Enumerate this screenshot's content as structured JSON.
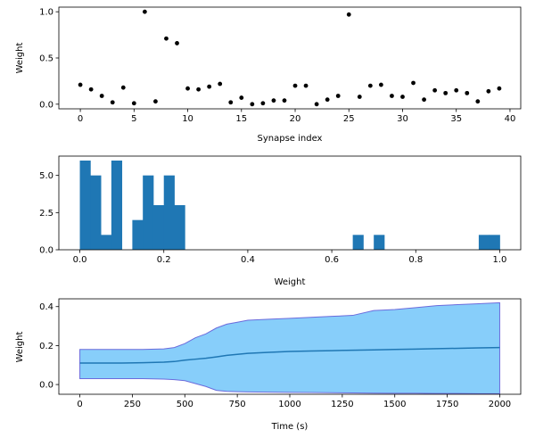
{
  "chart_data": [
    {
      "type": "scatter",
      "xlabel": "Synapse index",
      "ylabel": "Weight",
      "xlim": [
        -2,
        41
      ],
      "ylim": [
        -0.05,
        1.05
      ],
      "xticks": [
        0,
        5,
        10,
        15,
        20,
        25,
        30,
        35,
        40
      ],
      "yticks": [
        0.0,
        0.5,
        1.0
      ],
      "ytick_labels": [
        "0.0",
        "0.5",
        "1.0"
      ],
      "grid": false,
      "marker_color": "#000000",
      "x": [
        0,
        1,
        2,
        3,
        4,
        5,
        6,
        7,
        8,
        9,
        10,
        11,
        12,
        13,
        14,
        15,
        16,
        17,
        18,
        19,
        20,
        21,
        22,
        23,
        24,
        25,
        26,
        27,
        28,
        29,
        30,
        31,
        32,
        33,
        34,
        35,
        36,
        37,
        38,
        39
      ],
      "y": [
        0.21,
        0.16,
        0.09,
        0.02,
        0.18,
        0.01,
        1.0,
        0.03,
        0.71,
        0.66,
        0.17,
        0.16,
        0.19,
        0.22,
        0.02,
        0.07,
        0.0,
        0.01,
        0.04,
        0.04,
        0.2,
        0.2,
        0.0,
        0.05,
        0.09,
        0.97,
        0.08,
        0.2,
        0.21,
        0.09,
        0.08,
        0.23,
        0.05,
        0.15,
        0.12,
        0.15,
        0.12,
        0.03,
        0.14,
        0.17
      ]
    },
    {
      "type": "bar",
      "subtype": "histogram",
      "xlabel": "Weight",
      "ylabel": "",
      "xlim": [
        -0.05,
        1.05
      ],
      "ylim": [
        0,
        6.3
      ],
      "xticks": [
        0.0,
        0.2,
        0.4,
        0.6,
        0.8,
        1.0
      ],
      "xtick_labels": [
        "0.0",
        "0.2",
        "0.4",
        "0.6",
        "0.8",
        "1.0"
      ],
      "yticks": [
        0.0,
        2.5,
        5.0
      ],
      "ytick_labels": [
        "0.0",
        "2.5",
        "5.0"
      ],
      "grid": false,
      "bar_color": "#1f77b4",
      "bin_start": 0.0,
      "bin_width": 0.025,
      "counts": [
        6,
        5,
        1,
        6,
        0,
        2,
        5,
        3,
        5,
        3,
        0,
        0,
        0,
        0,
        0,
        0,
        0,
        0,
        0,
        0,
        0,
        0,
        0,
        0,
        0,
        0,
        1,
        0,
        1,
        0,
        0,
        0,
        0,
        0,
        0,
        0,
        0,
        0,
        1,
        1
      ]
    },
    {
      "type": "area",
      "xlabel": "Time (s)",
      "ylabel": "Weight",
      "xlim": [
        -100,
        2100
      ],
      "ylim": [
        -0.05,
        0.44
      ],
      "xticks": [
        0,
        250,
        500,
        750,
        1000,
        1250,
        1500,
        1750,
        2000
      ],
      "yticks": [
        0.0,
        0.2,
        0.4
      ],
      "ytick_labels": [
        "0.0",
        "0.2",
        "0.4"
      ],
      "grid": false,
      "fill_color": "#87cefa",
      "edge_color": "#6b6bdc",
      "mean_color": "#1f77b4",
      "time": [
        0,
        100,
        200,
        300,
        400,
        450,
        500,
        550,
        600,
        650,
        700,
        750,
        800,
        900,
        1000,
        1100,
        1200,
        1300,
        1400,
        1500,
        1600,
        1700,
        1800,
        1900,
        2000
      ],
      "mean": [
        0.11,
        0.11,
        0.11,
        0.112,
        0.115,
        0.118,
        0.125,
        0.13,
        0.135,
        0.142,
        0.15,
        0.155,
        0.16,
        0.165,
        0.17,
        0.172,
        0.174,
        0.176,
        0.178,
        0.18,
        0.182,
        0.184,
        0.186,
        0.188,
        0.19
      ],
      "upper": [
        0.18,
        0.18,
        0.18,
        0.18,
        0.183,
        0.19,
        0.21,
        0.24,
        0.26,
        0.29,
        0.31,
        0.32,
        0.33,
        0.335,
        0.34,
        0.345,
        0.35,
        0.355,
        0.38,
        0.385,
        0.395,
        0.405,
        0.41,
        0.415,
        0.42
      ],
      "lower": [
        0.03,
        0.03,
        0.03,
        0.03,
        0.028,
        0.025,
        0.02,
        0.005,
        -0.01,
        -0.03,
        -0.035,
        -0.037,
        -0.038,
        -0.039,
        -0.04,
        -0.041,
        -0.042,
        -0.043,
        -0.044,
        -0.045,
        -0.045,
        -0.046,
        -0.046,
        -0.047,
        -0.047
      ]
    }
  ]
}
